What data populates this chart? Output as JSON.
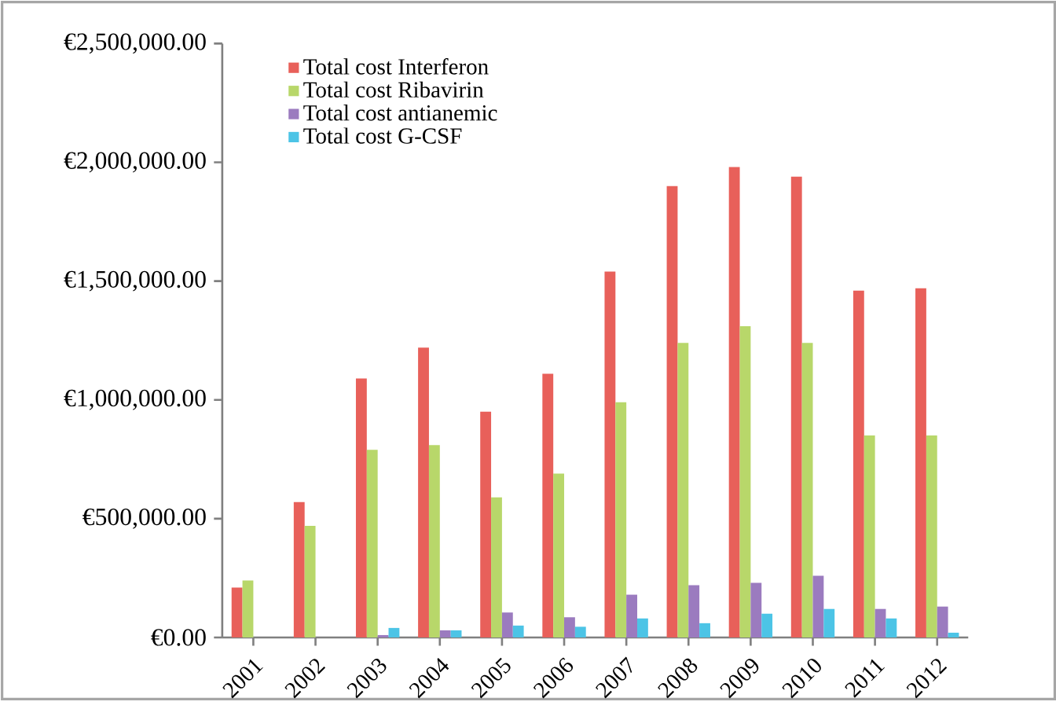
{
  "chart_data": {
    "type": "bar",
    "categories": [
      "2001",
      "2002",
      "2003",
      "2004",
      "2005",
      "2006",
      "2007",
      "2008",
      "2009",
      "2010",
      "2011",
      "2012"
    ],
    "series": [
      {
        "name": "Total cost  Interferon",
        "color": "#e8605a",
        "values": [
          210000,
          570000,
          1090000,
          1220000,
          950000,
          1110000,
          1540000,
          1900000,
          1980000,
          1940000,
          1460000,
          1470000
        ]
      },
      {
        "name": "Total cost Ribavirin",
        "color": "#b8d76a",
        "values": [
          240000,
          470000,
          790000,
          810000,
          590000,
          690000,
          990000,
          1240000,
          1310000,
          1240000,
          850000,
          850000
        ]
      },
      {
        "name": "Total cost antianemic",
        "color": "#9b7bbf",
        "values": [
          0,
          0,
          10000,
          30000,
          105000,
          85000,
          180000,
          220000,
          230000,
          260000,
          120000,
          130000
        ]
      },
      {
        "name": "Total cost G-CSF",
        "color": "#4cc4e6",
        "values": [
          0,
          0,
          40000,
          30000,
          50000,
          45000,
          80000,
          60000,
          100000,
          120000,
          80000,
          20000
        ]
      }
    ],
    "ylim": [
      0,
      2500000
    ],
    "yticks": [
      {
        "value": 0,
        "label": "€0.00"
      },
      {
        "value": 500000,
        "label": "€500,000.00"
      },
      {
        "value": 1000000,
        "label": "€1,000,000.00"
      },
      {
        "value": 1500000,
        "label": "€1,500,000.00"
      },
      {
        "value": 2000000,
        "label": "€2,000,000.00"
      },
      {
        "value": 2500000,
        "label": "€2,500,000.00"
      }
    ],
    "grid": false,
    "legend": "top left"
  }
}
